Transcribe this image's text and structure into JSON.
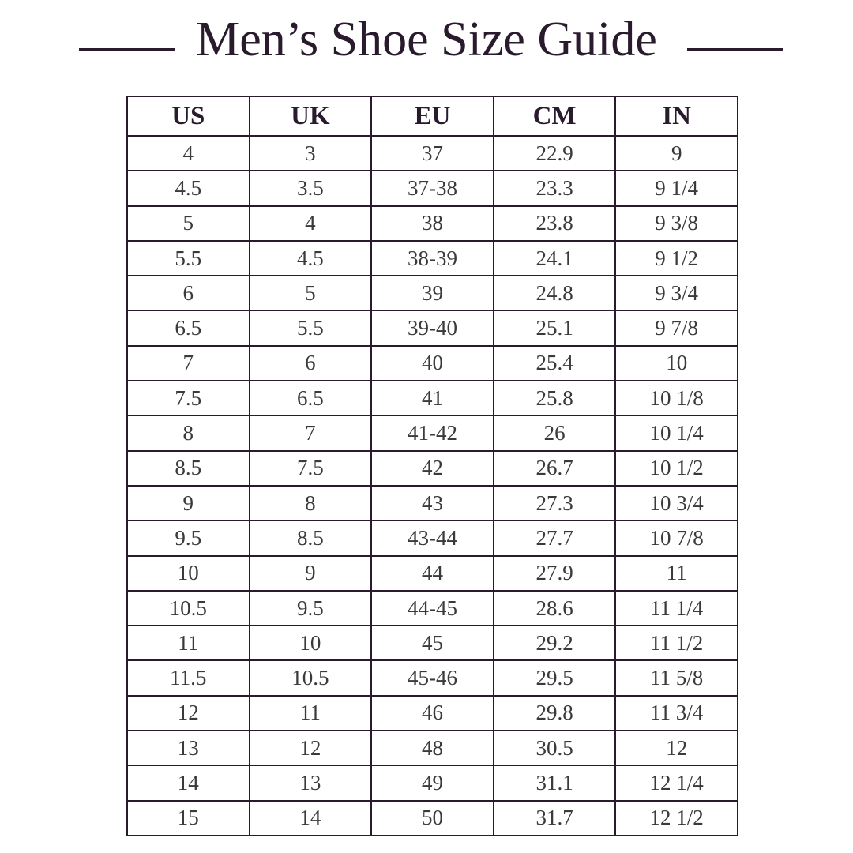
{
  "title": "Men’s Shoe Size Guide",
  "colors": {
    "ink": "#2a1a2e",
    "text": "#3a3a3a"
  },
  "table": {
    "headers": [
      "US",
      "UK",
      "EU",
      "CM",
      "IN"
    ],
    "rows": [
      [
        "4",
        "3",
        "37",
        "22.9",
        "9"
      ],
      [
        "4.5",
        "3.5",
        "37-38",
        "23.3",
        "9 1/4"
      ],
      [
        "5",
        "4",
        "38",
        "23.8",
        "9 3/8"
      ],
      [
        "5.5",
        "4.5",
        "38-39",
        "24.1",
        "9 1/2"
      ],
      [
        "6",
        "5",
        "39",
        "24.8",
        "9 3/4"
      ],
      [
        "6.5",
        "5.5",
        "39-40",
        "25.1",
        "9 7/8"
      ],
      [
        "7",
        "6",
        "40",
        "25.4",
        "10"
      ],
      [
        "7.5",
        "6.5",
        "41",
        "25.8",
        "10 1/8"
      ],
      [
        "8",
        "7",
        "41-42",
        "26",
        "10 1/4"
      ],
      [
        "8.5",
        "7.5",
        "42",
        "26.7",
        "10 1/2"
      ],
      [
        "9",
        "8",
        "43",
        "27.3",
        "10 3/4"
      ],
      [
        "9.5",
        "8.5",
        "43-44",
        "27.7",
        "10 7/8"
      ],
      [
        "10",
        "9",
        "44",
        "27.9",
        "11"
      ],
      [
        "10.5",
        "9.5",
        "44-45",
        "28.6",
        "11 1/4"
      ],
      [
        "11",
        "10",
        "45",
        "29.2",
        "11 1/2"
      ],
      [
        "11.5",
        "10.5",
        "45-46",
        "29.5",
        "11 5/8"
      ],
      [
        "12",
        "11",
        "46",
        "29.8",
        "11 3/4"
      ],
      [
        "13",
        "12",
        "48",
        "30.5",
        "12"
      ],
      [
        "14",
        "13",
        "49",
        "31.1",
        "12 1/4"
      ],
      [
        "15",
        "14",
        "50",
        "31.7",
        "12 1/2"
      ]
    ]
  }
}
